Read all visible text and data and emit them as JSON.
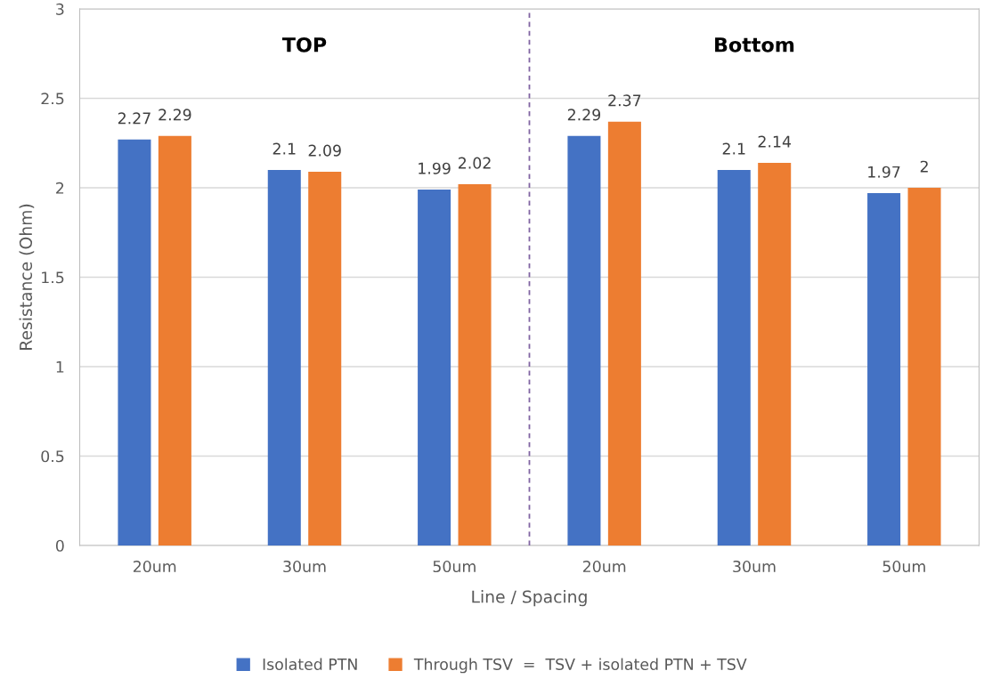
{
  "chart_data": {
    "type": "bar",
    "xlabel": "Line / Spacing",
    "ylabel": "Resistance (Ohm)",
    "categories": [
      "20um",
      "30um",
      "50um",
      "20um",
      "30um",
      "50um"
    ],
    "series": [
      {
        "name": "Isolated PTN",
        "color": "#4472c4",
        "values": [
          2.27,
          2.1,
          1.99,
          2.29,
          2.1,
          1.97
        ]
      },
      {
        "name": "Through TSV  =  TSV + isolated PTN + TSV",
        "color": "#ed7d31",
        "values": [
          2.29,
          2.09,
          2.02,
          2.37,
          2.14,
          2.0
        ]
      }
    ],
    "ylim": [
      0,
      3
    ],
    "yticks": [
      0,
      0.5,
      1,
      1.5,
      2,
      2.5,
      3
    ],
    "grid": "y",
    "legend": "bottom",
    "data_labels": true,
    "annotations": [
      "TOP",
      "Bottom"
    ]
  }
}
